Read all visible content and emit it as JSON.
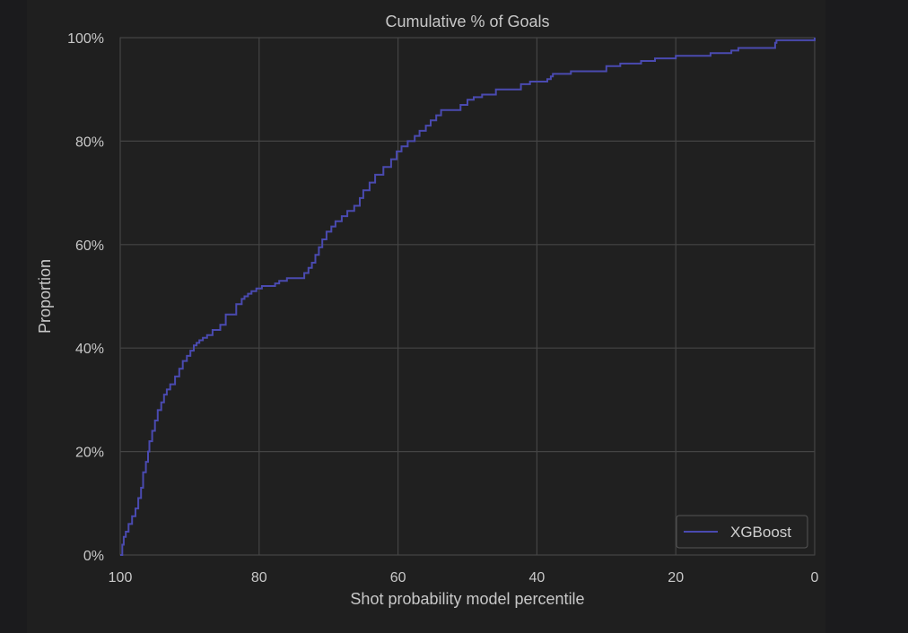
{
  "chart_data": {
    "type": "line",
    "title": "Cumulative % of Goals",
    "xlabel": "Shot probability model percentile",
    "ylabel": "Proportion",
    "xlim": [
      100,
      0
    ],
    "ylim": [
      0,
      1
    ],
    "x_inverted": true,
    "xticks": [
      100,
      80,
      60,
      40,
      20,
      0
    ],
    "yticks": [
      0,
      0.2,
      0.4,
      0.6,
      0.8,
      1.0
    ],
    "ytick_labels": [
      "0%",
      "20%",
      "40%",
      "60%",
      "80%",
      "100%"
    ],
    "xtick_labels": [
      "100",
      "80",
      "60",
      "40",
      "20",
      "0"
    ],
    "grid": true,
    "legend_position": "lower-right",
    "colors": {
      "background": "#1b1b1d",
      "plot_background": "#202020",
      "grid": "#444444",
      "line": "#4a4ab0"
    },
    "series": [
      {
        "name": "XGBoost",
        "color": "#4a4ab0",
        "x": [
          100,
          99.7,
          99.5,
          99.2,
          98.8,
          98.3,
          97.8,
          97.4,
          97.0,
          96.7,
          96.3,
          96.0,
          95.8,
          95.4,
          95.0,
          94.6,
          94.1,
          93.7,
          93.3,
          92.8,
          92.1,
          91.5,
          91.0,
          90.4,
          89.9,
          89.4,
          89.0,
          88.6,
          88.1,
          87.5,
          86.7,
          85.6,
          84.8,
          83.3,
          82.5,
          82.1,
          81.6,
          81.1,
          80.4,
          79.6,
          77.7,
          77.1,
          76.0,
          73.5,
          72.9,
          72.4,
          71.9,
          71.4,
          70.9,
          70.3,
          69.6,
          69.0,
          68.1,
          67.3,
          66.3,
          65.5,
          65.0,
          64.1,
          63.3,
          62.1,
          61.0,
          60.2,
          59.5,
          58.6,
          57.6,
          56.9,
          56.0,
          55.3,
          54.5,
          53.8,
          51.0,
          50.0,
          49.1,
          47.9,
          45.9,
          42.3,
          41.0,
          38.5,
          38.0,
          37.7,
          35.1,
          30.0,
          28.0,
          25.0,
          23.0,
          20.0,
          15.0,
          12.0,
          11.0,
          5.7,
          5.5,
          0
        ],
        "y": [
          0,
          0.02,
          0.035,
          0.045,
          0.06,
          0.075,
          0.09,
          0.11,
          0.13,
          0.16,
          0.18,
          0.2,
          0.22,
          0.24,
          0.26,
          0.28,
          0.295,
          0.31,
          0.32,
          0.33,
          0.345,
          0.36,
          0.375,
          0.385,
          0.395,
          0.405,
          0.41,
          0.415,
          0.42,
          0.425,
          0.435,
          0.445,
          0.465,
          0.485,
          0.495,
          0.5,
          0.505,
          0.51,
          0.515,
          0.52,
          0.525,
          0.53,
          0.535,
          0.545,
          0.555,
          0.565,
          0.58,
          0.595,
          0.61,
          0.625,
          0.635,
          0.645,
          0.655,
          0.665,
          0.675,
          0.69,
          0.705,
          0.72,
          0.735,
          0.75,
          0.765,
          0.78,
          0.79,
          0.8,
          0.81,
          0.82,
          0.83,
          0.84,
          0.85,
          0.86,
          0.87,
          0.88,
          0.885,
          0.89,
          0.9,
          0.91,
          0.915,
          0.92,
          0.925,
          0.93,
          0.935,
          0.945,
          0.95,
          0.955,
          0.96,
          0.965,
          0.97,
          0.975,
          0.98,
          0.99,
          0.995,
          1.0
        ]
      }
    ]
  }
}
